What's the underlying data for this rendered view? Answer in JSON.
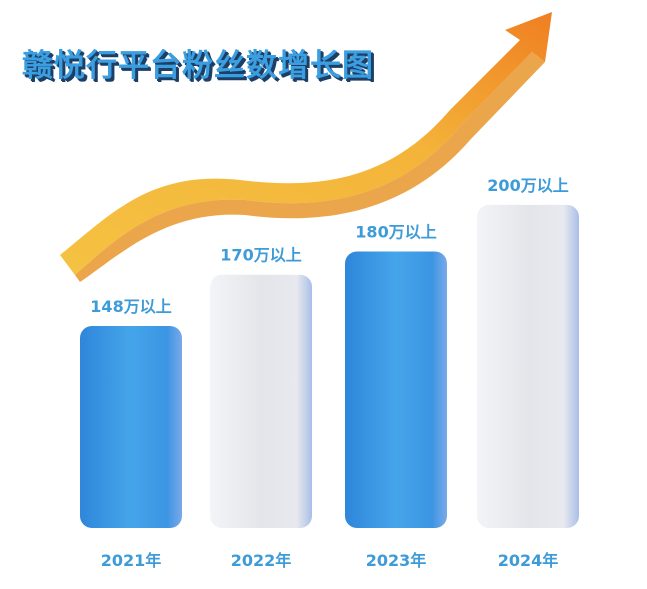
{
  "chart_data": {
    "type": "bar",
    "title": "赣悦行平台粉丝数增长图",
    "categories": [
      "2021年",
      "2022年",
      "2023年",
      "2024年"
    ],
    "values": [
      148,
      170,
      180,
      200
    ],
    "unit": "万",
    "data_labels": [
      "148万以上",
      "170万以上",
      "180万以上",
      "200万以上"
    ],
    "xlabel": "",
    "ylabel": "",
    "grid": false,
    "colors": {
      "blue": "#3a97e6",
      "white": "#e6e7ec",
      "label": "#3d9bd8",
      "arrow": "#f2b33a"
    },
    "bar_colors": [
      "blue",
      "white",
      "blue",
      "white"
    ],
    "decoration": "rising-arrow"
  }
}
